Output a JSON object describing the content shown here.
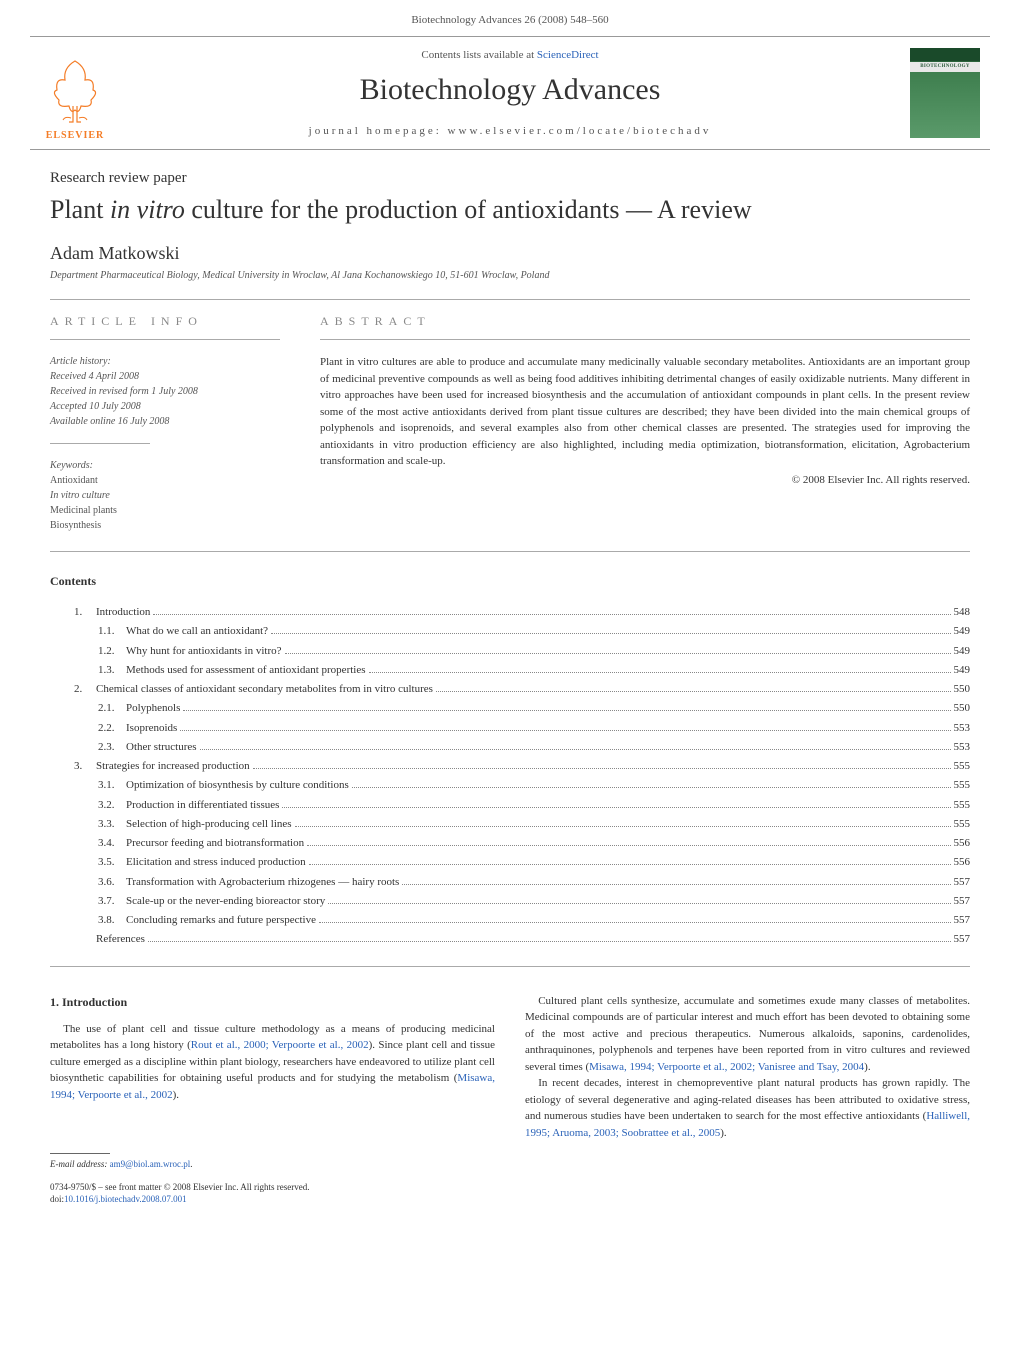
{
  "header_line": "Biotechnology Advances 26 (2008) 548–560",
  "journal_box": {
    "elsevier": "ELSEVIER",
    "contents_prefix": "Contents lists available at ",
    "contents_link": "ScienceDirect",
    "title": "Biotechnology Advances",
    "homepage": "journal homepage: www.elsevier.com/locate/biotechadv",
    "cover_label": "BIOTECHNOLOGY"
  },
  "article": {
    "type": "Research review paper",
    "title": "Plant in vitro culture for the production of antioxidants — A review",
    "author": "Adam Matkowski",
    "affiliation": "Department Pharmaceutical Biology, Medical University in Wroclaw, Al Jana Kochanowskiego 10, 51-601 Wroclaw, Poland"
  },
  "info": {
    "heading": "ARTICLE INFO",
    "history_title": "Article history:",
    "received": "Received 4 April 2008",
    "revised": "Received in revised form 1 July 2008",
    "accepted": "Accepted 10 July 2008",
    "online": "Available online 16 July 2008",
    "keywords_title": "Keywords:",
    "keywords": [
      "Antioxidant",
      "In vitro culture",
      "Medicinal plants",
      "Biosynthesis"
    ]
  },
  "abstract": {
    "heading": "ABSTRACT",
    "text": "Plant in vitro cultures are able to produce and accumulate many medicinally valuable secondary metabolites. Antioxidants are an important group of medicinal preventive compounds as well as being food additives inhibiting detrimental changes of easily oxidizable nutrients. Many different in vitro approaches have been used for increased biosynthesis and the accumulation of antioxidant compounds in plant cells. In the present review some of the most active antioxidants derived from plant tissue cultures are described; they have been divided into the main chemical groups of polyphenols and isoprenoids, and several examples also from other chemical classes are presented. The strategies used for improving the antioxidants in vitro production efficiency are also highlighted, including media optimization, biotransformation, elicitation, Agrobacterium transformation and scale-up.",
    "copyright": "© 2008 Elsevier Inc. All rights reserved."
  },
  "contents": {
    "heading": "Contents",
    "items": [
      {
        "level": 1,
        "num": "1.",
        "label": "Introduction",
        "page": "548"
      },
      {
        "level": 2,
        "num": "1.1.",
        "label": "What do we call an antioxidant?",
        "page": "549"
      },
      {
        "level": 2,
        "num": "1.2.",
        "label": "Why hunt for antioxidants in vitro?",
        "page": "549"
      },
      {
        "level": 2,
        "num": "1.3.",
        "label": "Methods used for assessment of antioxidant properties",
        "page": "549"
      },
      {
        "level": 1,
        "num": "2.",
        "label": "Chemical classes of antioxidant secondary metabolites from in vitro cultures",
        "page": "550"
      },
      {
        "level": 2,
        "num": "2.1.",
        "label": "Polyphenols",
        "page": "550"
      },
      {
        "level": 2,
        "num": "2.2.",
        "label": "Isoprenoids",
        "page": "553"
      },
      {
        "level": 2,
        "num": "2.3.",
        "label": "Other structures",
        "page": "553"
      },
      {
        "level": 1,
        "num": "3.",
        "label": "Strategies for increased production",
        "page": "555"
      },
      {
        "level": 2,
        "num": "3.1.",
        "label": "Optimization of biosynthesis by culture conditions",
        "page": "555"
      },
      {
        "level": 2,
        "num": "3.2.",
        "label": "Production in differentiated tissues",
        "page": "555"
      },
      {
        "level": 2,
        "num": "3.3.",
        "label": "Selection of high-producing cell lines",
        "page": "555"
      },
      {
        "level": 2,
        "num": "3.4.",
        "label": "Precursor feeding and biotransformation",
        "page": "556"
      },
      {
        "level": 2,
        "num": "3.5.",
        "label": "Elicitation and stress induced production",
        "page": "556"
      },
      {
        "level": 2,
        "num": "3.6.",
        "label": "Transformation with Agrobacterium rhizogenes — hairy roots",
        "page": "557"
      },
      {
        "level": 2,
        "num": "3.7.",
        "label": "Scale-up or the never-ending bioreactor story",
        "page": "557"
      },
      {
        "level": 2,
        "num": "3.8.",
        "label": "Concluding remarks and future perspective",
        "page": "557"
      },
      {
        "level": 1,
        "num": "",
        "label": "References",
        "page": "557"
      }
    ]
  },
  "body": {
    "intro_heading": "1. Introduction",
    "left_p1a": "The use of plant cell and tissue culture methodology as a means of producing medicinal metabolites has a long history (",
    "left_ref1": "Rout et al., 2000; Verpoorte et al., 2002",
    "left_p1b": "). Since plant cell and tissue culture emerged as a discipline within plant biology, researchers have endeavored to utilize plant cell biosynthetic capabilities for obtaining useful products and for studying the metabolism (",
    "left_ref2": "Misawa, 1994; Verpoorte et al., 2002",
    "left_p1c": ").",
    "right_p1a": "Cultured plant cells synthesize, accumulate and sometimes exude many classes of metabolites. Medicinal compounds are of particular interest and much effort has been devoted to obtaining some of the most active and precious therapeutics. Numerous alkaloids, saponins, cardenolides, anthraquinones, polyphenols and terpenes have been reported from in vitro cultures and reviewed several times (",
    "right_ref1": "Misawa, 1994; Verpoorte et al., 2002; Vanisree and Tsay, 2004",
    "right_p1b": ").",
    "right_p2a": "In recent decades, interest in chemopreventive plant natural products has grown rapidly. The etiology of several degenerative and aging-related diseases has been attributed to oxidative stress, and numerous studies have been undertaken to search for the most effective antioxidants (",
    "right_ref2": "Halliwell, 1995; Aruoma, 2003; Soobrattee et al., 2005",
    "right_p2b": ")."
  },
  "footnote": {
    "email_label": "E-mail address: ",
    "email": "am9@biol.am.wroc.pl",
    "price": "0734-9750/$ – see front matter © 2008 Elsevier Inc. All rights reserved.",
    "doi_label": "doi:",
    "doi": "10.1016/j.biotechadv.2008.07.001"
  },
  "colors": {
    "link": "#2a62b8",
    "elsevier": "#F47C26"
  }
}
